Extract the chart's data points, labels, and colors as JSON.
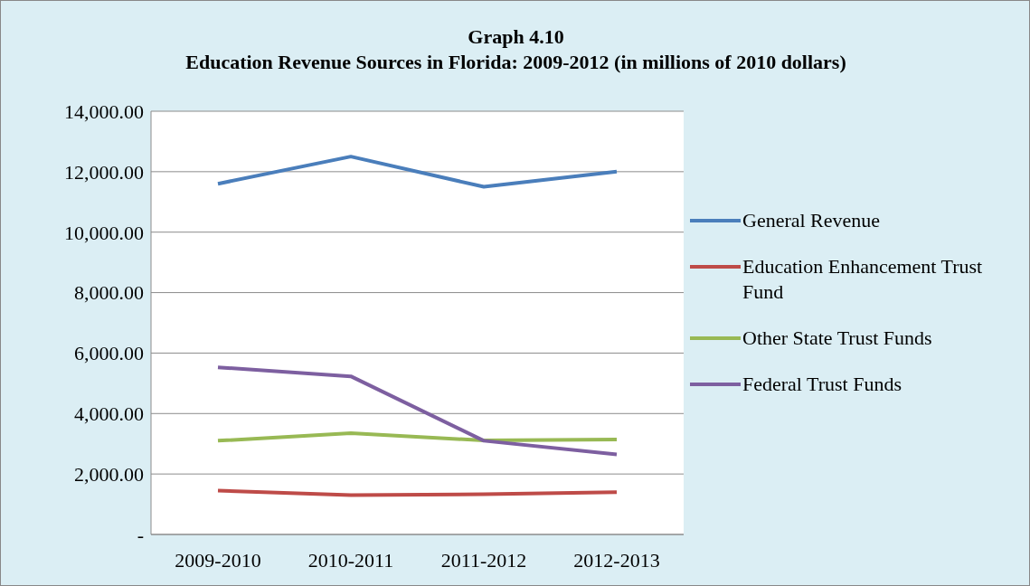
{
  "chart_data": {
    "type": "line",
    "title": "Graph 4.10",
    "subtitle": "Education Revenue Sources in Florida: 2009-2012 (in millions of 2010 dollars)",
    "categories": [
      "2009-2010",
      "2010-2011",
      "2011-2012",
      "2012-2013"
    ],
    "series": [
      {
        "name": "General Revenue",
        "color": "#4a7ebb",
        "values": [
          11600,
          12500,
          11500,
          12000
        ]
      },
      {
        "name": "Education Enhancement Trust Fund",
        "color": "#be4b48",
        "values": [
          1450,
          1300,
          1330,
          1400
        ]
      },
      {
        "name": "Other State Trust Funds",
        "color": "#98b954",
        "values": [
          3100,
          3350,
          3110,
          3140
        ]
      },
      {
        "name": "Federal Trust Funds",
        "color": "#7d5fa0",
        "values": [
          5530,
          5230,
          3100,
          2650
        ]
      }
    ],
    "ylim": [
      0,
      14000
    ],
    "yticks": [
      {
        "value": 0,
        "label": "-"
      },
      {
        "value": 2000,
        "label": "2,000.00"
      },
      {
        "value": 4000,
        "label": "4,000.00"
      },
      {
        "value": 6000,
        "label": "6,000.00"
      },
      {
        "value": 8000,
        "label": "8,000.00"
      },
      {
        "value": 10000,
        "label": "10,000.00"
      },
      {
        "value": 12000,
        "label": "12,000.00"
      },
      {
        "value": 14000,
        "label": "14,000.00"
      }
    ],
    "grid": "y",
    "legend": "right",
    "marker": "none",
    "line_style": "solid"
  }
}
